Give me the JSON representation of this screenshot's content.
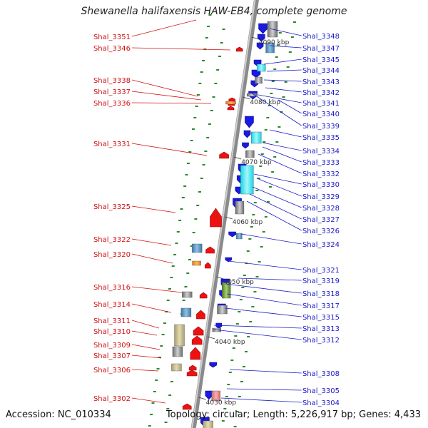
{
  "title": "Shewanella halifaxensis HAW-EB4, complete genome",
  "accession": "Accession: NC_010334",
  "topology": "Topology: circular; Length: 5,226,917 bp; Genes: 4,433",
  "scale_marks": [
    "4090 kbp",
    "4080 kbp",
    "4070 kbp",
    "4060 kbp",
    "4050 kbp",
    "4040 kbp",
    "4030 kbp"
  ],
  "left_genes": [
    "Shal_3351",
    "Shal_3346",
    "Shal_3338",
    "Shal_3337",
    "Shal_3336",
    "Shal_3331",
    "Shal_3325",
    "Shal_3322",
    "Shal_3320",
    "Shal_3316",
    "Shal_3314",
    "Shal_3311",
    "Shal_3310",
    "Shal_3309",
    "Shal_3307",
    "Shal_3306",
    "Shal_3302"
  ],
  "right_genes": [
    "Shal_3348",
    "Shal_3347",
    "Shal_3345",
    "Shal_3344",
    "Shal_3343",
    "Shal_3342",
    "Shal_3341",
    "Shal_3340",
    "Shal_3339",
    "Shal_3335",
    "Shal_3334",
    "Shal_3333",
    "Shal_3332",
    "Shal_3330",
    "Shal_3329",
    "Shal_3328",
    "Shal_3327",
    "Shal_3326",
    "Shal_3324",
    "Shal_3321",
    "Shal_3319",
    "Shal_3318",
    "Shal_3317",
    "Shal_3315",
    "Shal_3313",
    "Shal_3312",
    "Shal_3308",
    "Shal_3305",
    "Shal_3304"
  ],
  "colors": {
    "forward_label": "#d21010",
    "reverse_label": "#1a1ac8",
    "forward_gene": "#ee1111",
    "reverse_gene": "#1a1ae0",
    "backbone": "#8a8a8a",
    "gc_tick": "#2a8a2a"
  }
}
